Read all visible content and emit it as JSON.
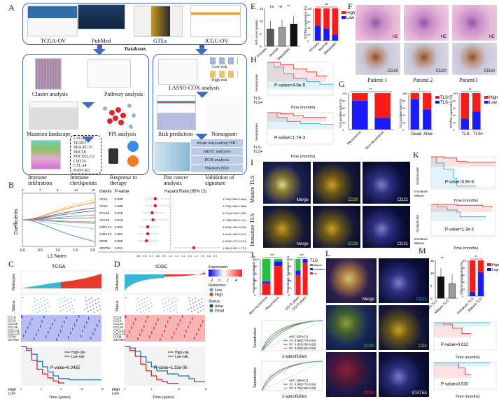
{
  "panel_labels": [
    "A",
    "B",
    "C",
    "D",
    "E",
    "F",
    "G",
    "H",
    "I",
    "J",
    "K",
    "L",
    "M"
  ],
  "A": {
    "databases": [
      "TCGA-OV",
      "PubMed",
      "GTEx",
      "ICGC-OV"
    ],
    "databases_title": "Databases",
    "left": [
      "Cluster analysis",
      "Pathway analysis",
      "Mutation landscape",
      "PPI analysis",
      "Immune infiltration",
      "Immune checkpoints",
      "Response to therapy"
    ],
    "checkpoints": [
      "LAG3",
      "TIGHT",
      "SIGLEC15",
      "PDCD1",
      "PDCD1LG2",
      "CD274",
      "CTLA4",
      "HAVCR2"
    ],
    "right": [
      "LASSO-COX analysis",
      "Risk prediction",
      "Nomogram",
      "Pan cancer analysis",
      "Validation of signature"
    ],
    "risk_legend": [
      "Low risk",
      "High risk"
    ],
    "validation": [
      "tissue microarray IHC",
      "mIHC analysis",
      "PCR analysis",
      "Western Blot"
    ]
  },
  "B": {
    "lasso": {
      "xlabel": "L1 Norm",
      "ylabel": "Coefficients",
      "xticks": [
        "0.0",
        "0.5",
        "1.0",
        "1.5",
        "2.0"
      ],
      "top_ticks": [
        "0",
        "7",
        "9",
        "14",
        "16"
      ]
    },
    "header": {
      "genes": "Genes",
      "p": "P-value",
      "hr": "Hazard Ratio (95% CI)"
    }
  },
  "C": {
    "title": "TCGA",
    "pvalue": "P-value=0.0435",
    "xlabel": "Time (years)"
  },
  "D": {
    "title": "ICGC",
    "pvalue": "P-value=1.33e-06",
    "xlabel": "Time (years)"
  },
  "CD_common": {
    "riskscore": "Riskscore",
    "status": "Status",
    "genes": [
      "CCL5",
      "CCL8",
      "CCL18",
      "CCL19",
      "CXCL11",
      "CXCL13",
      "CD38",
      "STAT5A"
    ],
    "km_legend": [
      "High-risk",
      "Low-risk"
    ],
    "risk_rows": [
      "High",
      "Low"
    ]
  },
  "heat_legend": {
    "title": "Expression",
    "ticks": [
      "-2",
      "0",
      "2",
      "4"
    ],
    "riskscore_title": "Riskscore:",
    "riskscore": [
      "Low",
      "High"
    ],
    "status_title": "Status:",
    "status": [
      "Alive",
      "Dead"
    ]
  },
  "F": {
    "patients": [
      "Patient 1",
      "Patient 2",
      "Patient3"
    ],
    "stains": [
      "HE",
      "CD20"
    ]
  },
  "H": {
    "pvalues": [
      "P-value=4.0e-5",
      "P-value=1.7e-3"
    ],
    "ylabel": "Survival rate",
    "xlabel": "Time (months)",
    "rows": [
      "TLS-",
      "TLS+"
    ]
  },
  "I": {
    "rows": [
      "Mature TLS",
      "Immature TLS"
    ],
    "channels": [
      "Merge",
      "CD20",
      "CD21"
    ]
  },
  "K": {
    "pvalues": [
      "P-value=5.8e-8",
      "P-value=1.3e-3"
    ],
    "ylabel": "Survival rate",
    "xlabel": "Time (months)",
    "rows": [
      "Immature",
      "Mature"
    ]
  },
  "L": {
    "channels": [
      "Merge",
      "CD21",
      "CD20",
      "CD3",
      "CD23",
      "STAT5A"
    ]
  },
  "J": {
    "roc_xlabel": "1-specificities",
    "roc_ylabel": "Sensitivities",
    "roc1": [
      "AUC (95%CI)",
      "1Y: 0.85(0.78-0.92)",
      "3Y: 0.82(0.68-0.96)",
      "5Y: 0.80(0.65-0.95)"
    ],
    "roc2": [
      "AUC (95%CI)",
      "1Y: 0.86(0.79-0.94)",
      "3Y: 0.78(0.58-0.98)"
    ]
  },
  "M": {
    "pvalues": [
      "P-value=0.012",
      "P-value=0.030"
    ],
    "ylabel": "Survival rate",
    "xlabel": "Time (months)"
  },
  "colors": {
    "high": "#ff1a1a",
    "low": "#1a1aff",
    "mature": "#22c040",
    "blue_line": "#1f77b4",
    "red_line": "#d62728",
    "teal": "#3ab7d6",
    "frame": "#3b63b0"
  },
  "chart_data": [
    {
      "id": "forest",
      "type": "scatter",
      "title": "Hazard Ratio (95% CI)",
      "genes": [
        "CCL5",
        "CCL8",
        "CCL18",
        "CCL19",
        "CXCL11",
        "CXCL13",
        "CD38",
        "STAT5A"
      ],
      "p": [
        "0.039",
        "0.039",
        "0.010",
        "0.016",
        "0.001",
        "0.001",
        "0.000",
        "0.021"
      ],
      "hr": [
        0.76,
        0.76,
        0.711,
        0.725,
        0.643,
        0.644,
        0.623,
        1.361
      ],
      "lo": [
        0.585,
        0.585,
        0.548,
        0.559,
        0.495,
        0.495,
        0.479,
        1.047
      ],
      "hi": [
        0.988,
        0.988,
        0.922,
        0.941,
        0.834,
        0.837,
        0.81,
        1.77
      ],
      "labels": [
        "0.760(0.585-0.988)",
        "0.760(0.585-0.988)",
        "0.711(0.548-0.922)",
        "0.725(0.559-0.941)",
        "0.643(0.495-0.834)",
        "0.644(0.495-0.837)",
        "0.623(0.479-0.810)",
        "1.361(1.047-1.770)"
      ],
      "xlim": [
        0.5,
        1.7
      ],
      "xticks": [
        "0.5",
        "0.6",
        "0.7",
        "0.8",
        "0.9",
        "1.0",
        "1.1",
        "1.2",
        "1.3",
        "1.4",
        "1.5",
        "1.6",
        "1.7"
      ]
    },
    {
      "id": "E1",
      "type": "bar",
      "categories": [
        "Primary",
        "Normal",
        "Metastatic"
      ],
      "values": [
        6.8,
        7.4,
        8.8
      ],
      "err": [
        3.2,
        3.2,
        3.2
      ],
      "colors": [
        "#555555",
        "#999999",
        "#111111"
      ],
      "ylabel": "IHS score (points)",
      "ylim": [
        0,
        15
      ],
      "yticks": [
        "0",
        "5",
        "10",
        "15"
      ],
      "sig": [
        "ns",
        "ns",
        "**"
      ]
    },
    {
      "id": "E2",
      "type": "bar",
      "stacked": true,
      "categories": [
        "Primary",
        "Normal",
        "Metastatic"
      ],
      "series": [
        {
          "name": "Low",
          "values": [
            47,
            37,
            19
          ]
        },
        {
          "name": "High",
          "values": [
            53,
            63,
            81
          ]
        }
      ],
      "ylabel": "STAT5A expression (%)",
      "legend": [
        "High",
        "Low"
      ],
      "sig": "***"
    },
    {
      "id": "G1",
      "type": "bar",
      "stacked": true,
      "categories": [
        "Recurrence",
        "Non-recurrence"
      ],
      "series": [
        {
          "name": "TLS-",
          "values": [
            79,
            32
          ]
        },
        {
          "name": "TLS+",
          "values": [
            21,
            68
          ]
        }
      ],
      "ylabel": "TLS positive rate (%)",
      "sig": "**"
    },
    {
      "id": "G2",
      "type": "bar",
      "stacked": true,
      "categories": [
        "Dead",
        "Alive"
      ],
      "series": [
        {
          "name": "TLS-",
          "values": [
            83,
            55
          ]
        },
        {
          "name": "TLS+",
          "values": [
            17,
            45
          ]
        }
      ],
      "ylabel": "TLS positive rate (%)",
      "legend": [
        "TLS+",
        "TLS-"
      ],
      "sig": "*"
    },
    {
      "id": "G3",
      "type": "bar",
      "stacked": true,
      "categories": [
        "TLS-",
        "TLS+"
      ],
      "series": [
        {
          "name": "Low",
          "values": [
            30,
            49
          ]
        },
        {
          "name": "High",
          "values": [
            70,
            51
          ]
        }
      ],
      "ylabel": "STAT5A expression (%)",
      "legend": [
        "High",
        "Low"
      ],
      "sig": "**"
    },
    {
      "id": "J1",
      "type": "bar",
      "stacked": true,
      "categories": [
        "Non-recurrence",
        "Recurrence"
      ],
      "series": [
        {
          "name": "No",
          "values": [
            32,
            80
          ]
        },
        {
          "name": "Immature",
          "values": [
            5,
            13
          ]
        },
        {
          "name": "Mature",
          "values": [
            63,
            7
          ]
        }
      ],
      "ylabel": "Percentage of patients (%)",
      "legend_title": "TLS",
      "legend": [
        "Mature",
        "Immature",
        "No"
      ],
      "sig": "***"
    },
    {
      "id": "J2",
      "type": "bar",
      "stacked": true,
      "categories": [
        "OS>3 years",
        "OS<3 years"
      ],
      "series": [
        {
          "name": "No",
          "values": [
            55,
            90
          ]
        },
        {
          "name": "Immature",
          "values": [
            13,
            10
          ]
        },
        {
          "name": "Mature",
          "values": [
            32,
            0
          ]
        }
      ],
      "ylabel": "Percentage of patients (%)",
      "sig": "***"
    },
    {
      "id": "M1",
      "type": "bar",
      "categories": [
        "Immature TLS",
        "Mature TLS"
      ],
      "values": [
        8.5,
        5.8
      ],
      "err": [
        3.5,
        3.8
      ],
      "colors": [
        "#111111",
        "#999999"
      ],
      "ylabel": "IHS score (points)",
      "ylim": [
        0,
        15
      ],
      "yticks": [
        "0",
        "5",
        "10",
        "15"
      ],
      "sig": "**"
    },
    {
      "id": "M2",
      "type": "bar",
      "stacked": true,
      "categories": [
        "Immature TLS",
        "Mature TLS"
      ],
      "series": [
        {
          "name": "Low",
          "values": [
            12,
            67
          ]
        },
        {
          "name": "High",
          "values": [
            88,
            33
          ]
        }
      ],
      "ylabel": "STAT5A expression (%)",
      "legend": [
        "High",
        "Low"
      ],
      "sig": "**"
    },
    {
      "id": "kmC",
      "type": "line",
      "xlim": [
        0,
        15
      ],
      "xticks": [
        "0",
        "4",
        "8",
        "12",
        "15"
      ],
      "series": [
        {
          "name": "High-risk",
          "points": [
            [
              0,
              1
            ],
            [
              1,
              0.9
            ],
            [
              2,
              0.65
            ],
            [
              3,
              0.42
            ],
            [
              4,
              0.3
            ],
            [
              5,
              0.2
            ],
            [
              6,
              0.12
            ],
            [
              7,
              0.07
            ],
            [
              8,
              0.05
            ]
          ]
        },
        {
          "name": "Low-risk",
          "points": [
            [
              0,
              1
            ],
            [
              1,
              0.95
            ],
            [
              2,
              0.8
            ],
            [
              3,
              0.62
            ],
            [
              4,
              0.48
            ],
            [
              5,
              0.35
            ],
            [
              6,
              0.25
            ],
            [
              7,
              0.18
            ],
            [
              9,
              0.15
            ],
            [
              15,
              0.15
            ]
          ]
        }
      ]
    },
    {
      "id": "kmD",
      "type": "line",
      "xlim": [
        0,
        15
      ],
      "xticks": [
        "0",
        "5",
        "10",
        "15"
      ],
      "series": [
        {
          "name": "High-risk",
          "points": [
            [
              0,
              1
            ],
            [
              1,
              0.9
            ],
            [
              2,
              0.75
            ],
            [
              3,
              0.55
            ],
            [
              4,
              0.38
            ],
            [
              5,
              0.25
            ],
            [
              6,
              0.15
            ],
            [
              7,
              0.1
            ],
            [
              8,
              0.06
            ],
            [
              10,
              0.05
            ]
          ]
        },
        {
          "name": "Low-risk",
          "points": [
            [
              0,
              1
            ],
            [
              1,
              0.96
            ],
            [
              2,
              0.88
            ],
            [
              3,
              0.74
            ],
            [
              4,
              0.6
            ],
            [
              5,
              0.48
            ],
            [
              6,
              0.38
            ],
            [
              8,
              0.3
            ],
            [
              10,
              0.25
            ],
            [
              12,
              0.18
            ],
            [
              13,
              0.1
            ],
            [
              15,
              0.1
            ]
          ]
        }
      ]
    },
    {
      "id": "kmH1",
      "type": "line",
      "xlim": [
        0,
        100
      ],
      "series": [
        {
          "name": "TLS-",
          "points": [
            [
              0,
              1
            ],
            [
              10,
              0.85
            ],
            [
              25,
              0.65
            ],
            [
              40,
              0.5
            ],
            [
              60,
              0.4
            ],
            [
              80,
              0.32
            ],
            [
              100,
              0.3
            ]
          ]
        },
        {
          "name": "TLS+",
          "points": [
            [
              0,
              1
            ],
            [
              20,
              0.92
            ],
            [
              40,
              0.8
            ],
            [
              60,
              0.7
            ],
            [
              75,
              0.58
            ],
            [
              90,
              0.55
            ]
          ]
        }
      ]
    },
    {
      "id": "kmH2",
      "type": "line",
      "xlim": [
        0,
        100
      ],
      "series": [
        {
          "name": "TLS-",
          "points": [
            [
              0,
              1
            ],
            [
              15,
              0.85
            ],
            [
              30,
              0.72
            ],
            [
              50,
              0.65
            ],
            [
              80,
              0.62
            ],
            [
              100,
              0.6
            ]
          ]
        },
        {
          "name": "TLS+",
          "points": [
            [
              0,
              1
            ],
            [
              20,
              0.97
            ],
            [
              40,
              0.9
            ],
            [
              55,
              0.85
            ],
            [
              90,
              0.85
            ]
          ]
        }
      ]
    },
    {
      "id": "kmK1",
      "type": "line",
      "xlim": [
        0,
        100
      ],
      "series": [
        {
          "name": "Immature",
          "points": [
            [
              0,
              1
            ],
            [
              8,
              0.8
            ],
            [
              20,
              0.6
            ],
            [
              35,
              0.3
            ],
            [
              40,
              0.05
            ],
            [
              70,
              0.05
            ]
          ]
        },
        {
          "name": "Mature",
          "points": [
            [
              0,
              1
            ],
            [
              20,
              0.96
            ],
            [
              40,
              0.85
            ],
            [
              55,
              0.82
            ],
            [
              100,
              0.82
            ]
          ]
        }
      ]
    },
    {
      "id": "kmK2",
      "type": "line",
      "xlim": [
        0,
        100
      ],
      "series": [
        {
          "name": "Immature",
          "points": [
            [
              0,
              1
            ],
            [
              10,
              0.92
            ],
            [
              25,
              0.82
            ],
            [
              40,
              0.75
            ],
            [
              45,
              0.6
            ],
            [
              85,
              0.6
            ]
          ]
        },
        {
          "name": "Mature",
          "points": [
            [
              0,
              1
            ],
            [
              40,
              0.97
            ],
            [
              80,
              0.93
            ],
            [
              95,
              0.9
            ]
          ]
        }
      ]
    },
    {
      "id": "kmM1",
      "type": "line",
      "xlim": [
        0,
        100
      ],
      "series": [
        {
          "name": "High",
          "points": [
            [
              0,
              1
            ],
            [
              15,
              0.95
            ],
            [
              30,
              0.8
            ],
            [
              45,
              0.6
            ],
            [
              60,
              0.6
            ]
          ]
        },
        {
          "name": "Low",
          "points": [
            [
              0,
              1
            ],
            [
              90,
              1
            ]
          ]
        }
      ]
    },
    {
      "id": "kmM2",
      "type": "line",
      "xlim": [
        0,
        100
      ],
      "series": [
        {
          "name": "High",
          "points": [
            [
              0,
              1
            ],
            [
              35,
              1
            ],
            [
              40,
              0.8
            ],
            [
              50,
              0.55
            ],
            [
              60,
              0.55
            ]
          ]
        },
        {
          "name": "Low",
          "points": [
            [
              0,
              1
            ],
            [
              90,
              1
            ]
          ]
        }
      ]
    }
  ]
}
